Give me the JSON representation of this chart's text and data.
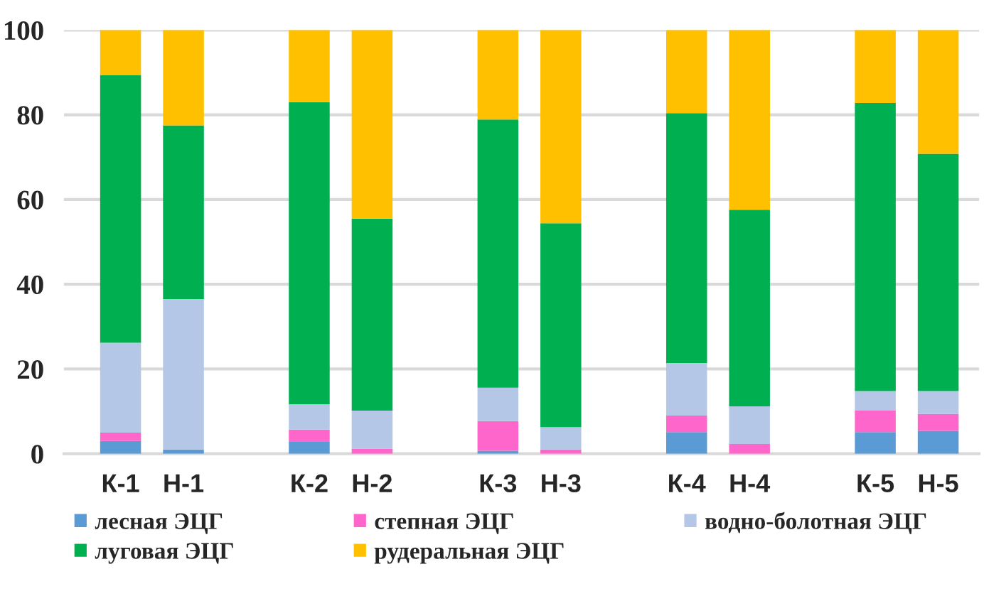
{
  "chart_data": {
    "type": "bar",
    "stacked": true,
    "categories": [
      "К-1",
      "Н-1",
      null,
      "К-2",
      "Н-2",
      null,
      "К-3",
      "Н-3",
      null,
      "К-4",
      "Н-4",
      null,
      "К-5",
      "Н-5"
    ],
    "series": [
      {
        "name": "лесная ЭЦГ",
        "color": "#5b9bd5",
        "values": [
          3.0,
          1.0,
          null,
          2.8,
          0,
          null,
          0.7,
          0,
          null,
          5.1,
          0,
          null,
          5.1,
          5.4
        ]
      },
      {
        "name": "степная ЭЦГ",
        "color": "#ff66cc",
        "values": [
          2.0,
          0,
          null,
          2.9,
          1.2,
          null,
          7.0,
          1.0,
          null,
          3.9,
          2.3,
          null,
          5.1,
          4.0
        ]
      },
      {
        "name": "водно-болотная ЭЦГ",
        "color": "#b4c7e7",
        "values": [
          21.2,
          35.5,
          null,
          6.0,
          9.0,
          null,
          7.9,
          5.3,
          null,
          12.4,
          8.9,
          null,
          4.6,
          5.4
        ]
      },
      {
        "name": "луговая ЭЦГ",
        "color": "#00b050",
        "values": [
          63.1,
          41.0,
          null,
          71.3,
          45.3,
          null,
          63.3,
          48.1,
          null,
          59.0,
          46.4,
          null,
          68.0,
          56.0
        ]
      },
      {
        "name": "рудеральная ЭЦГ",
        "color": "#ffc000",
        "values": [
          10.7,
          22.5,
          null,
          17.0,
          44.5,
          null,
          21.1,
          45.6,
          null,
          19.6,
          42.4,
          null,
          17.2,
          29.2
        ]
      }
    ],
    "ylim": [
      0,
      100
    ],
    "yticks": [
      0,
      20,
      40,
      60,
      80,
      100
    ],
    "grid": "y",
    "legend": "bottom"
  }
}
